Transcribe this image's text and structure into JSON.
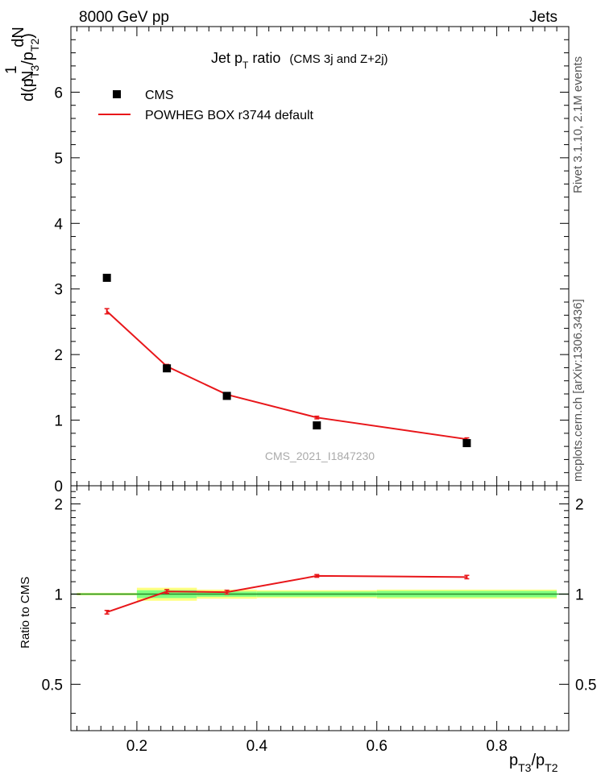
{
  "header": {
    "left": "8000 GeV pp",
    "right": "Jets"
  },
  "side_labels": {
    "rivet": "Rivet 3.1.10,  2.1M events",
    "mcplots": "mcplots.cern.ch [arXiv:1306.3436]"
  },
  "watermark": "CMS_2021_I1847230",
  "title": {
    "main": "Jet p",
    "sub": "T",
    "rest": " ratio",
    "small": "(CMS 3j and Z+2j)"
  },
  "legend": [
    {
      "label": "CMS",
      "marker": "square",
      "color": "#000000"
    },
    {
      "label": "POWHEG BOX r3744 default",
      "marker": "line",
      "color": "#e8161a"
    }
  ],
  "ylabel_main": {
    "one": "1",
    "n": "N",
    "dn": "dN",
    "d": "d(p",
    "t3": "T3",
    "slash": "/p",
    "t2": "T2",
    "close": ")"
  },
  "ylabel_ratio": "Ratio to CMS",
  "xlabel": {
    "p1": "p",
    "t3": "T3",
    "slash": "/p",
    "t2": "T2"
  },
  "colors": {
    "data": "#000000",
    "mc": "#e8161a",
    "band_outer": "#ffff80",
    "band_inner": "#80ff80",
    "ref_line": "#2a8c2a"
  },
  "chart_data": [
    {
      "type": "scatter",
      "panel": "main",
      "xlim": [
        0.09,
        0.92
      ],
      "ylim": [
        0,
        7
      ],
      "yticks": [
        0,
        1,
        2,
        3,
        4,
        5,
        6
      ],
      "xticks": [
        0.2,
        0.4,
        0.6,
        0.8
      ],
      "series": [
        {
          "name": "CMS",
          "style": "markers",
          "x": [
            0.15,
            0.25,
            0.35,
            0.5,
            0.75
          ],
          "y": [
            3.17,
            1.79,
            1.37,
            0.92,
            0.65
          ]
        },
        {
          "name": "POWHEG BOX r3744 default",
          "style": "line",
          "x": [
            0.15,
            0.25,
            0.35,
            0.5,
            0.75
          ],
          "y": [
            2.66,
            1.82,
            1.39,
            1.04,
            0.71
          ],
          "yerr": [
            0.04,
            0.03,
            0.02,
            0.02,
            0.02
          ]
        }
      ]
    },
    {
      "type": "line",
      "panel": "ratio",
      "xlim": [
        0.09,
        0.92
      ],
      "ylim": [
        0.35,
        2.3
      ],
      "yticks": [
        0.5,
        1,
        2
      ],
      "xticks": [
        0.2,
        0.4,
        0.6,
        0.8
      ],
      "ylabel": "Ratio to CMS",
      "bins": [
        {
          "lo": 0.1,
          "hi": 0.2,
          "stat": 0.006,
          "tot": 0.01
        },
        {
          "lo": 0.2,
          "hi": 0.3,
          "stat": 0.03,
          "tot": 0.05
        },
        {
          "lo": 0.3,
          "hi": 0.4,
          "stat": 0.02,
          "tot": 0.035
        },
        {
          "lo": 0.4,
          "hi": 0.6,
          "stat": 0.02,
          "tot": 0.03
        },
        {
          "lo": 0.6,
          "hi": 0.9,
          "stat": 0.025,
          "tot": 0.035
        }
      ],
      "series": [
        {
          "name": "POWHEG BOX r3744 default",
          "x": [
            0.15,
            0.25,
            0.35,
            0.5,
            0.75
          ],
          "y": [
            0.87,
            1.02,
            1.015,
            1.15,
            1.14
          ],
          "yerr": [
            0.012,
            0.015,
            0.015,
            0.012,
            0.015
          ]
        }
      ]
    }
  ]
}
